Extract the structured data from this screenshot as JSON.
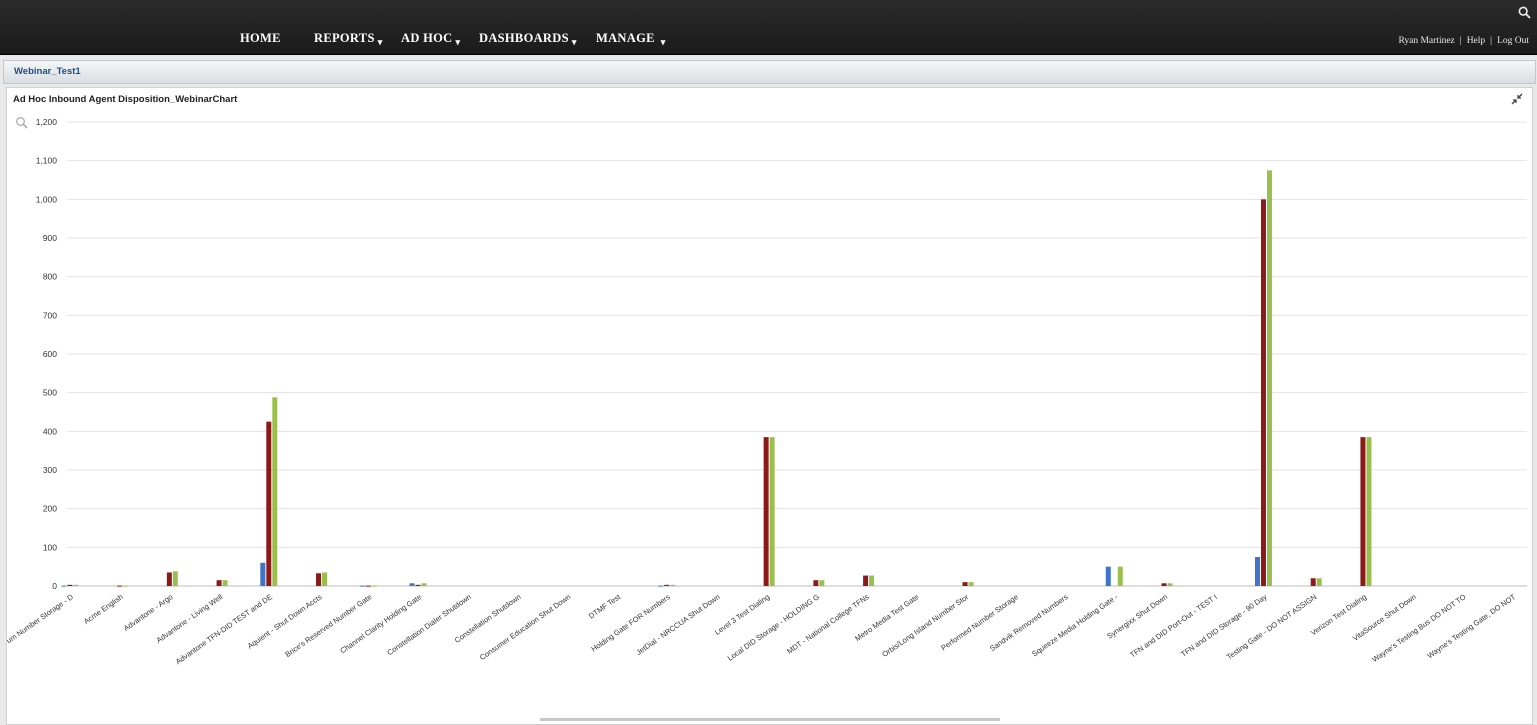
{
  "nav": {
    "items": [
      {
        "label": "HOME",
        "has_menu": false
      },
      {
        "label": "REPORTS",
        "has_menu": true
      },
      {
        "label": "AD HOC",
        "has_menu": true
      },
      {
        "label": "DASHBOARDS",
        "has_menu": true
      },
      {
        "label": "MANAGE",
        "has_menu": true
      }
    ],
    "caret": "▾",
    "user_name": "Ryan Martinez",
    "separator": "|",
    "help_label": "Help",
    "logout_label": "Log Out"
  },
  "dashboard": {
    "tab_title": "Webinar_Test1"
  },
  "panel": {
    "title": "Ad Hoc Inbound Agent Disposition_WebinarChart"
  },
  "colors": {
    "series_blue": "#3f74c9",
    "series_red": "#8b1a1a",
    "series_green": "#9bbf4e",
    "nav_bg": "#1f1f1f",
    "link_blue": "#1d4f86"
  },
  "chart_data": {
    "type": "bar",
    "title": "",
    "xlabel": "",
    "ylabel": "",
    "ylim": [
      0,
      1200
    ],
    "yticks": [
      0,
      100,
      200,
      300,
      400,
      500,
      600,
      700,
      800,
      900,
      1000,
      1100,
      1200
    ],
    "ytick_labels": [
      "0",
      "100",
      "200",
      "300",
      "400",
      "500",
      "600",
      "700",
      "800",
      "900",
      "1,000",
      "1,100",
      "1,200"
    ],
    "grid": true,
    "categories": [
      "um Number Storage - D",
      "Acme English",
      "Advantone - Argo",
      "Advantone - Living Well",
      "Advantone TFN-DID TEST and DE",
      "Aquient - Shut Down Accts",
      "Brice's Reserved Number Gate",
      "Channel Clarity Holding Gate",
      "Constellation Dialer Shutdown",
      "Constellation Shutdown",
      "Consumer Education Shut Down",
      "DTMF Test",
      "Holding Gate FOR Numbers",
      "JetDial - NRCCUA Shut Down",
      "Level 3 Test Dialing",
      "Local DID Storage - HOLDING G",
      "MDT - National College TFNs",
      "Metro Media Test Gate",
      "Orbis/Long Island Number Stor",
      "Performed Number Storage",
      "Sandvik Removed Numbers",
      "Squeeze Media Holding Gate -",
      "Synergixx Shut Down",
      "TFN and DID Port-Out - TEST I",
      "TFN and DID Storage - 90 Day",
      "Testing Gate - DO NOT ASSIGN",
      "Verizon Test Dialing",
      "VitaSource Shut Down",
      "Wayne's Testing Bus DO NOT TO",
      "Wayne's Testing Gate, DO NOT"
    ],
    "series": [
      {
        "values": [
          1,
          0,
          0,
          0,
          60,
          0,
          1,
          7,
          0,
          0,
          0,
          0,
          1,
          0,
          0,
          0,
          0,
          0,
          0,
          0,
          0,
          50,
          0,
          0,
          75,
          0,
          0,
          0,
          0,
          0
        ]
      },
      {
        "values": [
          3,
          1,
          35,
          15,
          425,
          33,
          1,
          3,
          0,
          0,
          0,
          0,
          3,
          0,
          385,
          15,
          27,
          0,
          10,
          0,
          0,
          0,
          7,
          0,
          1000,
          20,
          385,
          0,
          0,
          0
        ]
      },
      {
        "values": [
          3,
          1,
          38,
          15,
          488,
          35,
          1,
          7,
          0,
          0,
          0,
          0,
          3,
          0,
          385,
          15,
          27,
          0,
          10,
          0,
          0,
          50,
          7,
          0,
          1075,
          20,
          385,
          0,
          0,
          0
        ]
      }
    ]
  }
}
